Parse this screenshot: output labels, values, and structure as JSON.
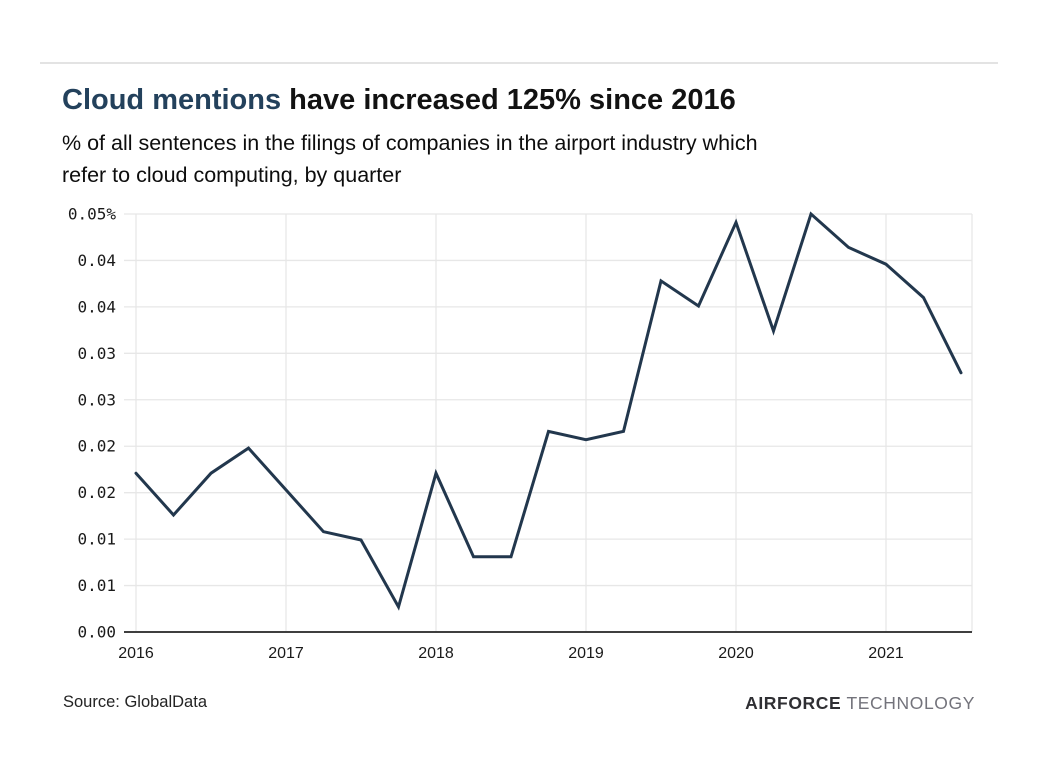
{
  "title": {
    "highlight": "Cloud mentions",
    "rest": " have increased 125% since 2016"
  },
  "subtitle": {
    "lines": [
      "% of all sentences in the filings of companies in the airport industry which",
      "refer to cloud computing, by quarter"
    ]
  },
  "chart_data": {
    "type": "line",
    "title": "Cloud mentions have increased 125% since 2016",
    "subtitle": "% of all sentences in the filings of companies in the airport industry which refer to cloud computing, by quarter",
    "x_quarters": [
      "2016 Q1",
      "2016 Q2",
      "2016 Q3",
      "2016 Q4",
      "2017 Q1",
      "2017 Q2",
      "2017 Q3",
      "2017 Q4",
      "2018 Q1",
      "2018 Q2",
      "2018 Q3",
      "2018 Q4",
      "2019 Q1",
      "2019 Q2",
      "2019 Q3",
      "2019 Q4",
      "2020 Q1",
      "2020 Q2",
      "2020 Q3",
      "2020 Q4",
      "2021 Q1",
      "2021 Q2",
      "2021 Q3"
    ],
    "values": [
      0.019,
      0.014,
      0.019,
      0.022,
      0.017,
      0.012,
      0.011,
      0.003,
      0.019,
      0.009,
      0.009,
      0.024,
      0.023,
      0.024,
      0.042,
      0.039,
      0.049,
      0.036,
      0.05,
      0.046,
      0.044,
      0.04,
      0.031
    ],
    "x_tick_labels": [
      "2016",
      "2017",
      "2018",
      "2019",
      "2020",
      "2021"
    ],
    "y_tick_labels": [
      "0.05%",
      "0.04",
      "0.04",
      "0.03",
      "0.03",
      "0.02",
      "0.02",
      "0.01",
      "0.01",
      "0.00"
    ],
    "ylim": [
      0,
      0.05
    ],
    "xlabel": "",
    "ylabel": "",
    "grid": true,
    "legend_position": "none",
    "line_color": "#22374d",
    "grid_color": "#e7e7e7",
    "axis_color": "#3f3f3f",
    "tick_label_color": "#1a1a1a"
  },
  "footer": {
    "source": "Source: GlobalData",
    "brand_bold": "AIRFORCE",
    "brand_light": "TECHNOLOGY"
  }
}
